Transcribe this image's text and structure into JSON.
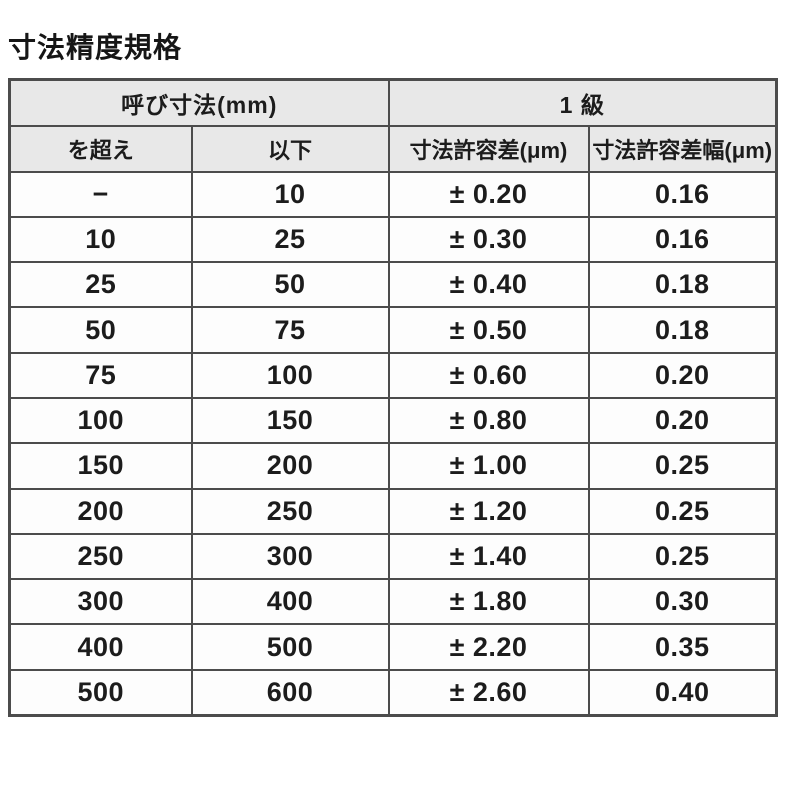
{
  "page": {
    "title": "寸法精度規格"
  },
  "colors": {
    "border": "#4c4c4c",
    "header_bg": "#e8e8e8",
    "row_bg": "#fdfdfd",
    "text": "#1c1c1c",
    "page_bg": "#ffffff"
  },
  "table": {
    "group_headers": [
      {
        "label": "呼び寸法(mm)",
        "colspan": 2
      },
      {
        "label": "1 級",
        "colspan": 2
      }
    ],
    "column_headers": [
      "を超え",
      "以下",
      "寸法許容差(μm)",
      "寸法許容差幅(μm)"
    ],
    "rows": [
      [
        "−",
        "10",
        "± 0.20",
        "0.16"
      ],
      [
        "10",
        "25",
        "± 0.30",
        "0.16"
      ],
      [
        "25",
        "50",
        "± 0.40",
        "0.18"
      ],
      [
        "50",
        "75",
        "± 0.50",
        "0.18"
      ],
      [
        "75",
        "100",
        "± 0.60",
        "0.20"
      ],
      [
        "100",
        "150",
        "± 0.80",
        "0.20"
      ],
      [
        "150",
        "200",
        "± 1.00",
        "0.25"
      ],
      [
        "200",
        "250",
        "± 1.20",
        "0.25"
      ],
      [
        "250",
        "300",
        "± 1.40",
        "0.25"
      ],
      [
        "300",
        "400",
        "± 1.80",
        "0.30"
      ],
      [
        "400",
        "500",
        "± 2.20",
        "0.35"
      ],
      [
        "500",
        "600",
        "± 2.60",
        "0.40"
      ]
    ]
  }
}
